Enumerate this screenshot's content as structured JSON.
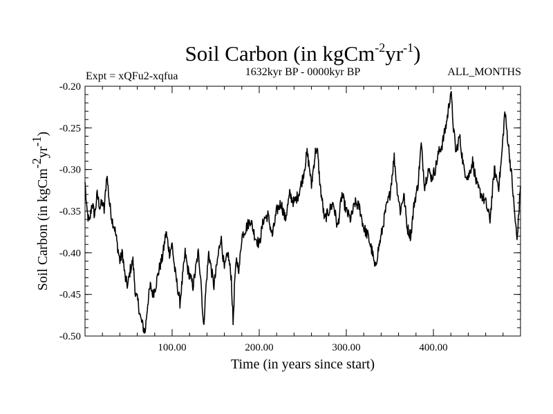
{
  "chart_data": {
    "type": "line",
    "title": {
      "main": "Soil Carbon (in kgCm",
      "exp1": "-2",
      "mid": "yr",
      "exp2": "-1",
      "end": ")"
    },
    "left_subtitle": "Expt = xQFu2-xqfua",
    "center_subtitle": "1632kyr BP - 0000kyr BP",
    "right_subtitle": "ALL_MONTHS",
    "xlabel": "Time (in years since start)",
    "ylabel": {
      "main": "Soil Carbon (in kgCm",
      "exp1": "-2",
      "mid": "yr",
      "exp2": "-1",
      "end": ")"
    },
    "xlim": [
      0,
      500
    ],
    "ylim": [
      -0.5,
      -0.2
    ],
    "x_ticks": [
      100,
      200,
      300,
      400
    ],
    "x_tick_labels": [
      "100.00",
      "200.00",
      "300.00",
      "400.00"
    ],
    "y_ticks": [
      -0.5,
      -0.45,
      -0.4,
      -0.35,
      -0.3,
      -0.25,
      -0.2
    ],
    "y_tick_labels": [
      "-0.50",
      "-0.45",
      "-0.40",
      "-0.35",
      "-0.30",
      "-0.25",
      "-0.20"
    ],
    "series": [
      {
        "name": "Soil Carbon",
        "color": "#000000",
        "x": [
          0,
          2,
          5,
          8,
          11,
          14,
          17,
          20,
          22,
          25,
          28,
          31,
          34,
          37,
          40,
          43,
          46,
          49,
          52,
          55,
          58,
          61,
          64,
          67,
          69,
          72,
          75,
          78,
          81,
          85,
          89,
          93,
          97,
          100,
          103,
          106,
          109,
          112,
          115,
          118,
          121,
          124,
          127,
          130,
          133,
          136,
          139,
          142,
          145,
          148,
          152,
          156,
          160,
          164,
          168,
          170,
          172,
          174,
          177,
          180,
          185,
          190,
          195,
          200,
          205,
          210,
          215,
          220,
          225,
          230,
          235,
          240,
          245,
          250,
          255,
          258,
          260,
          262,
          265,
          267,
          270,
          275,
          280,
          285,
          290,
          295,
          300,
          305,
          310,
          315,
          320,
          325,
          330,
          333,
          336,
          340,
          345,
          350,
          355,
          358,
          362,
          366,
          370,
          374,
          378,
          382,
          386,
          390,
          394,
          398,
          402,
          406,
          410,
          414,
          417,
          420,
          423,
          426,
          430,
          435,
          440,
          445,
          450,
          455,
          460,
          465,
          470,
          475,
          478,
          482,
          486,
          490,
          493,
          496,
          500
        ],
        "y": [
          -0.315,
          -0.35,
          -0.365,
          -0.34,
          -0.355,
          -0.33,
          -0.345,
          -0.34,
          -0.35,
          -0.305,
          -0.34,
          -0.36,
          -0.37,
          -0.39,
          -0.41,
          -0.4,
          -0.43,
          -0.44,
          -0.42,
          -0.41,
          -0.45,
          -0.46,
          -0.48,
          -0.49,
          -0.495,
          -0.46,
          -0.44,
          -0.45,
          -0.44,
          -0.42,
          -0.405,
          -0.375,
          -0.4,
          -0.39,
          -0.42,
          -0.44,
          -0.46,
          -0.43,
          -0.4,
          -0.42,
          -0.43,
          -0.44,
          -0.42,
          -0.4,
          -0.43,
          -0.49,
          -0.44,
          -0.4,
          -0.42,
          -0.44,
          -0.41,
          -0.38,
          -0.42,
          -0.4,
          -0.43,
          -0.485,
          -0.43,
          -0.41,
          -0.42,
          -0.38,
          -0.37,
          -0.36,
          -0.38,
          -0.39,
          -0.36,
          -0.355,
          -0.38,
          -0.35,
          -0.34,
          -0.36,
          -0.33,
          -0.34,
          -0.33,
          -0.31,
          -0.28,
          -0.3,
          -0.32,
          -0.3,
          -0.275,
          -0.28,
          -0.32,
          -0.36,
          -0.35,
          -0.34,
          -0.37,
          -0.33,
          -0.35,
          -0.36,
          -0.34,
          -0.345,
          -0.37,
          -0.38,
          -0.4,
          -0.42,
          -0.4,
          -0.38,
          -0.35,
          -0.33,
          -0.285,
          -0.32,
          -0.35,
          -0.33,
          -0.37,
          -0.38,
          -0.34,
          -0.32,
          -0.27,
          -0.32,
          -0.3,
          -0.31,
          -0.3,
          -0.28,
          -0.27,
          -0.25,
          -0.23,
          -0.205,
          -0.25,
          -0.28,
          -0.26,
          -0.3,
          -0.31,
          -0.29,
          -0.32,
          -0.33,
          -0.34,
          -0.36,
          -0.3,
          -0.32,
          -0.29,
          -0.23,
          -0.27,
          -0.31,
          -0.35,
          -0.385,
          -0.32
        ]
      }
    ]
  }
}
